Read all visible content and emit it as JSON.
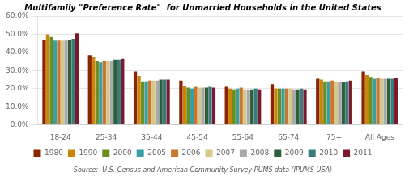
{
  "chart_data": {
    "type": "bar",
    "title": "Multifamily \"Preference Rate\"  for Unmarried Households in the United States",
    "annotations": [
      "Source:  U.S. Census and American Community Survey PUMS data (IPUMS-USA)"
    ],
    "categories": [
      "18-24",
      "25-34",
      "35-44",
      "45-54",
      "55-64",
      "65-74",
      "75+",
      "All Ages"
    ],
    "series": [
      {
        "name": "1980",
        "color": "#8B2500",
        "values": [
          47.0,
          38.5,
          29.5,
          24.5,
          21.0,
          22.5,
          25.5,
          29.5
        ]
      },
      {
        "name": "1990",
        "color": "#C8870A",
        "values": [
          50.0,
          37.5,
          27.0,
          21.5,
          20.0,
          20.0,
          25.0,
          27.5
        ]
      },
      {
        "name": "2000",
        "color": "#6B8E23",
        "values": [
          48.5,
          35.0,
          24.0,
          20.5,
          19.5,
          20.0,
          24.0,
          26.5
        ]
      },
      {
        "name": "2005",
        "color": "#3A9EA5",
        "values": [
          46.5,
          34.5,
          24.0,
          20.0,
          20.0,
          20.0,
          24.0,
          25.5
        ]
      },
      {
        "name": "2006",
        "color": "#C8762B",
        "values": [
          46.5,
          35.0,
          24.5,
          21.0,
          20.5,
          20.0,
          24.5,
          26.0
        ]
      },
      {
        "name": "2007",
        "color": "#D4C88A",
        "values": [
          46.5,
          35.0,
          24.5,
          20.5,
          19.5,
          20.0,
          24.0,
          25.5
        ]
      },
      {
        "name": "2008",
        "color": "#A9A9A9",
        "values": [
          46.5,
          35.0,
          24.5,
          20.5,
          19.5,
          19.5,
          23.5,
          25.5
        ]
      },
      {
        "name": "2009",
        "color": "#2F5F3A",
        "values": [
          47.0,
          36.0,
          25.0,
          20.5,
          19.5,
          19.5,
          23.5,
          25.5
        ]
      },
      {
        "name": "2010",
        "color": "#3A7B7B",
        "values": [
          47.5,
          36.0,
          25.0,
          21.0,
          20.0,
          20.0,
          24.0,
          25.5
        ]
      },
      {
        "name": "2011",
        "color": "#7B1A2E",
        "values": [
          50.5,
          36.5,
          25.0,
          20.5,
          19.5,
          19.5,
          24.5,
          26.0
        ]
      }
    ],
    "ylim": [
      0,
      60
    ],
    "yticks": [
      {
        "value": 0,
        "label": "0.0%"
      },
      {
        "value": 10,
        "label": "10.0%"
      },
      {
        "value": 20,
        "label": "20.0%"
      },
      {
        "value": 30,
        "label": "30.0%"
      },
      {
        "value": 40,
        "label": "40.0%"
      },
      {
        "value": 50,
        "label": "50.0%"
      },
      {
        "value": 60,
        "label": "60.0%"
      }
    ],
    "grid": true,
    "legend": "bottom"
  }
}
